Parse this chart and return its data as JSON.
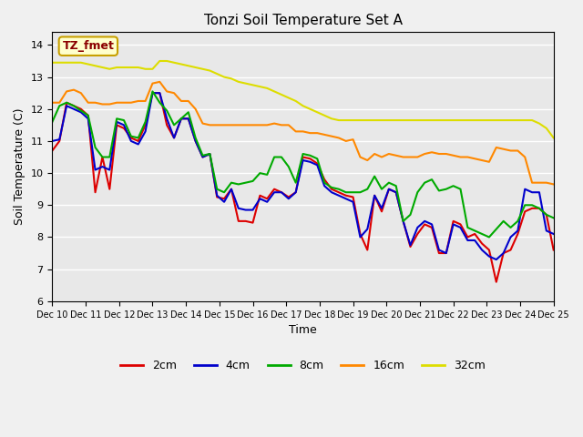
{
  "title": "Tonzi Soil Temperature Set A",
  "xlabel": "Time",
  "ylabel": "Soil Temperature (C)",
  "ylim": [
    6.0,
    14.4
  ],
  "xlim": [
    0,
    15
  ],
  "background_color": "#e8e8e8",
  "plot_bg_color": "#e8e8e8",
  "annotation_text": "TZ_fmet",
  "annotation_color": "#8b0000",
  "annotation_bg": "#ffffcc",
  "annotation_border": "#c8a000",
  "x_tick_labels": [
    "Dec 10",
    "Dec 11",
    "Dec 12",
    "Dec 13",
    "Dec 14",
    "Dec 15",
    "Dec 16",
    "Dec 17",
    "Dec 18",
    "Dec 19",
    "Dec 20",
    "Dec 21",
    "Dec 22",
    "Dec 23",
    "Dec 24",
    "Dec 25"
  ],
  "series": {
    "2cm": {
      "color": "#dd0000",
      "linewidth": 1.5,
      "y": [
        10.7,
        11.0,
        12.2,
        12.1,
        12.0,
        11.8,
        9.4,
        10.5,
        9.5,
        11.5,
        11.4,
        11.1,
        11.0,
        11.5,
        12.5,
        12.5,
        11.5,
        11.1,
        11.7,
        11.7,
        11.0,
        10.5,
        10.6,
        9.25,
        9.2,
        9.5,
        8.5,
        8.5,
        8.45,
        9.3,
        9.2,
        9.5,
        9.4,
        9.25,
        9.4,
        10.5,
        10.45,
        10.3,
        9.8,
        9.5,
        9.4,
        9.3,
        9.25,
        8.1,
        7.6,
        9.3,
        8.8,
        9.5,
        9.4,
        8.5,
        7.7,
        8.1,
        8.4,
        8.3,
        7.5,
        7.5,
        8.5,
        8.4,
        8.0,
        8.1,
        7.8,
        7.6,
        6.6,
        7.5,
        7.6,
        8.1,
        8.8,
        8.9,
        8.9,
        8.7,
        7.6
      ]
    },
    "4cm": {
      "color": "#0000cc",
      "linewidth": 1.5,
      "y": [
        11.0,
        11.05,
        12.1,
        12.0,
        11.9,
        11.7,
        10.1,
        10.2,
        10.1,
        11.6,
        11.5,
        11.0,
        10.9,
        11.3,
        12.5,
        12.5,
        11.7,
        11.1,
        11.7,
        11.7,
        11.0,
        10.5,
        10.6,
        9.3,
        9.1,
        9.5,
        8.9,
        8.85,
        8.85,
        9.2,
        9.1,
        9.4,
        9.4,
        9.2,
        9.4,
        10.4,
        10.35,
        10.25,
        9.6,
        9.4,
        9.3,
        9.2,
        9.1,
        8.0,
        8.25,
        9.3,
        8.9,
        9.5,
        9.4,
        8.5,
        7.75,
        8.3,
        8.5,
        8.4,
        7.6,
        7.5,
        8.4,
        8.3,
        7.9,
        7.9,
        7.6,
        7.4,
        7.3,
        7.5,
        8.0,
        8.2,
        9.5,
        9.4,
        9.4,
        8.2,
        8.1
      ]
    },
    "8cm": {
      "color": "#00aa00",
      "linewidth": 1.5,
      "y": [
        11.6,
        12.1,
        12.2,
        12.1,
        11.95,
        11.8,
        10.8,
        10.5,
        10.5,
        11.7,
        11.65,
        11.15,
        11.1,
        11.6,
        12.55,
        12.2,
        11.95,
        11.5,
        11.7,
        11.9,
        11.1,
        10.55,
        10.6,
        9.5,
        9.4,
        9.7,
        9.65,
        9.7,
        9.75,
        10.0,
        9.95,
        10.5,
        10.5,
        10.2,
        9.7,
        10.6,
        10.55,
        10.45,
        9.7,
        9.55,
        9.5,
        9.4,
        9.4,
        9.4,
        9.5,
        9.9,
        9.5,
        9.7,
        9.6,
        8.5,
        8.7,
        9.4,
        9.7,
        9.8,
        9.45,
        9.5,
        9.6,
        9.5,
        8.3,
        8.2,
        8.1,
        8.0,
        8.25,
        8.5,
        8.3,
        8.5,
        9.0,
        9.0,
        8.9,
        8.7,
        8.6
      ]
    },
    "16cm": {
      "color": "#ff8800",
      "linewidth": 1.5,
      "y": [
        12.2,
        12.2,
        12.55,
        12.6,
        12.5,
        12.2,
        12.2,
        12.15,
        12.15,
        12.2,
        12.2,
        12.2,
        12.25,
        12.25,
        12.8,
        12.85,
        12.55,
        12.5,
        12.25,
        12.25,
        12.0,
        11.55,
        11.5,
        11.5,
        11.5,
        11.5,
        11.5,
        11.5,
        11.5,
        11.5,
        11.5,
        11.55,
        11.5,
        11.5,
        11.3,
        11.3,
        11.25,
        11.25,
        11.2,
        11.15,
        11.1,
        11.0,
        11.05,
        10.5,
        10.4,
        10.6,
        10.5,
        10.6,
        10.55,
        10.5,
        10.5,
        10.5,
        10.6,
        10.65,
        10.6,
        10.6,
        10.55,
        10.5,
        10.5,
        10.45,
        10.4,
        10.35,
        10.8,
        10.75,
        10.7,
        10.7,
        10.5,
        9.7,
        9.7,
        9.7,
        9.65
      ]
    },
    "32cm": {
      "color": "#dddd00",
      "linewidth": 1.5,
      "y": [
        13.45,
        13.45,
        13.45,
        13.45,
        13.45,
        13.4,
        13.35,
        13.3,
        13.25,
        13.3,
        13.3,
        13.3,
        13.3,
        13.25,
        13.25,
        13.5,
        13.5,
        13.45,
        13.4,
        13.35,
        13.3,
        13.25,
        13.2,
        13.1,
        13.0,
        12.95,
        12.85,
        12.8,
        12.75,
        12.7,
        12.65,
        12.55,
        12.45,
        12.35,
        12.25,
        12.1,
        12.0,
        11.9,
        11.8,
        11.7,
        11.65,
        11.65,
        11.65,
        11.65,
        11.65,
        11.65,
        11.65,
        11.65,
        11.65,
        11.65,
        11.65,
        11.65,
        11.65,
        11.65,
        11.65,
        11.65,
        11.65,
        11.65,
        11.65,
        11.65,
        11.65,
        11.65,
        11.65,
        11.65,
        11.65,
        11.65,
        11.65,
        11.65,
        11.55,
        11.4,
        11.1
      ]
    }
  }
}
